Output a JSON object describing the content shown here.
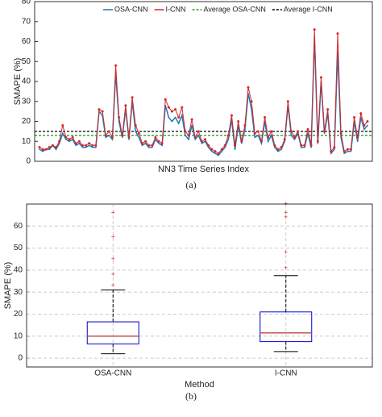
{
  "chart_data": [
    {
      "type": "line",
      "xlabel": "NN3 Time Series Index",
      "ylabel": "SMAPE (%)",
      "caption": "(a)",
      "ylim": [
        0,
        80
      ],
      "yticks": [
        0,
        10,
        20,
        30,
        40,
        50,
        60,
        70,
        80
      ],
      "grid": false,
      "legend": "top",
      "series": [
        {
          "name": "OSA-CNN",
          "color": "#1f77b4",
          "values": [
            6,
            5,
            6,
            6,
            8,
            6,
            9,
            14,
            11,
            10,
            11,
            8,
            9,
            7,
            7,
            8,
            7,
            7,
            25,
            23,
            12,
            13,
            11,
            44,
            20,
            12,
            26,
            11,
            30,
            15,
            12,
            8,
            9,
            7,
            7,
            11,
            9,
            8,
            28,
            22,
            20,
            22,
            19,
            23,
            13,
            11,
            18,
            11,
            13,
            9,
            10,
            7,
            5,
            4,
            3,
            5,
            7,
            11,
            21,
            6,
            18,
            9,
            16,
            34,
            26,
            12,
            13,
            9,
            20,
            10,
            13,
            7,
            5,
            6,
            10,
            28,
            13,
            11,
            14,
            7,
            7,
            14,
            7,
            62,
            9,
            40,
            14,
            24,
            4,
            6,
            55,
            12,
            4,
            5,
            5,
            20,
            10,
            22,
            16,
            18
          ]
        },
        {
          "name": "I-CNN",
          "color": "#d62728",
          "values": [
            7,
            6,
            6,
            7,
            8,
            7,
            10,
            18,
            12,
            11,
            12,
            9,
            10,
            8,
            8,
            9,
            8,
            8,
            26,
            25,
            13,
            15,
            12,
            48,
            22,
            13,
            28,
            12,
            32,
            18,
            14,
            9,
            10,
            8,
            8,
            12,
            10,
            9,
            31,
            27,
            25,
            26,
            22,
            27,
            15,
            13,
            21,
            12,
            15,
            10,
            11,
            8,
            6,
            5,
            4,
            6,
            8,
            13,
            23,
            8,
            20,
            10,
            18,
            37,
            30,
            14,
            15,
            10,
            22,
            12,
            15,
            8,
            6,
            7,
            11,
            30,
            15,
            12,
            15,
            8,
            8,
            16,
            8,
            66,
            10,
            42,
            15,
            26,
            5,
            7,
            64,
            14,
            5,
            6,
            6,
            22,
            12,
            24,
            18,
            20
          ]
        }
      ],
      "averages": [
        {
          "name": "Average OSA-CNN",
          "color": "#2ca02c",
          "value": 13
        },
        {
          "name": "Average I-CNN",
          "color": "#000000",
          "value": 15
        }
      ]
    },
    {
      "type": "box",
      "xlabel": "Method",
      "ylabel": "SMAPE (%)",
      "caption": "(b)",
      "ylim": [
        -4,
        70
      ],
      "yticks": [
        0,
        10,
        20,
        30,
        40,
        50,
        60
      ],
      "grid": true,
      "categories": [
        "OSA-CNN",
        "I-CNN"
      ],
      "boxes": [
        {
          "whisker_low": 2,
          "q1": 6.5,
          "median": 10,
          "q3": 16.5,
          "whisker_high": 31,
          "outliers": [
            33,
            38,
            45,
            55,
            66
          ]
        },
        {
          "whisker_low": 3,
          "q1": 7.5,
          "median": 11.5,
          "q3": 21,
          "whisker_high": 37.5,
          "outliers": [
            41,
            48,
            64,
            66,
            70
          ]
        }
      ],
      "box_color": "#0000cc",
      "median_color": "#c0504d",
      "outlier_color": "#d62728"
    }
  ]
}
